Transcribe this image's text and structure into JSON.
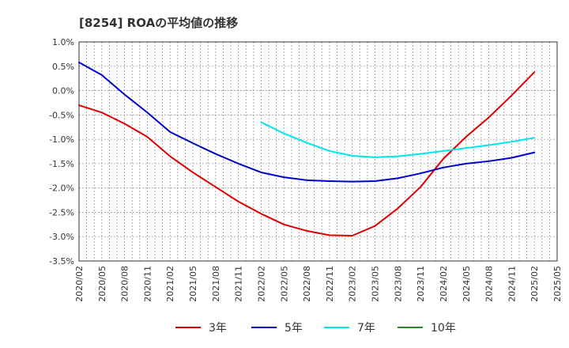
{
  "chart_data": {
    "type": "line",
    "title": "[8254]  ROAの平均値の推移",
    "xlabel": "",
    "ylabel": "",
    "x_ticks": [
      "2020/02",
      "2020/05",
      "2020/08",
      "2020/11",
      "2021/02",
      "2021/05",
      "2021/08",
      "2021/11",
      "2022/02",
      "2022/05",
      "2022/08",
      "2022/11",
      "2023/02",
      "2023/05",
      "2023/08",
      "2023/11",
      "2024/02",
      "2024/05",
      "2024/08",
      "2024/11",
      "2025/02",
      "2025/05"
    ],
    "y_ticks": [
      "1.0%",
      "0.5%",
      "0.0%",
      "-0.5%",
      "-1.0%",
      "-1.5%",
      "-2.0%",
      "-2.5%",
      "-3.0%",
      "-3.5%"
    ],
    "ylim": [
      -3.5,
      1.0
    ],
    "grid": true,
    "legend_position": "bottom",
    "series": [
      {
        "name": "3年",
        "color": "#dd0000",
        "points": [
          [
            0,
            -0.3
          ],
          [
            1,
            -0.45
          ],
          [
            2,
            -0.68
          ],
          [
            3,
            -0.95
          ],
          [
            4,
            -1.35
          ],
          [
            5,
            -1.68
          ],
          [
            6,
            -1.98
          ],
          [
            7,
            -2.28
          ],
          [
            8,
            -2.53
          ],
          [
            9,
            -2.75
          ],
          [
            10,
            -2.88
          ],
          [
            11,
            -2.97
          ],
          [
            12,
            -2.98
          ],
          [
            13,
            -2.78
          ],
          [
            14,
            -2.42
          ],
          [
            15,
            -1.98
          ],
          [
            16,
            -1.4
          ],
          [
            17,
            -0.95
          ],
          [
            18,
            -0.55
          ],
          [
            19,
            -0.1
          ],
          [
            20,
            0.38
          ]
        ]
      },
      {
        "name": "5年",
        "color": "#0000cc",
        "points": [
          [
            0,
            0.58
          ],
          [
            1,
            0.32
          ],
          [
            2,
            -0.08
          ],
          [
            3,
            -0.45
          ],
          [
            4,
            -0.85
          ],
          [
            5,
            -1.08
          ],
          [
            6,
            -1.3
          ],
          [
            7,
            -1.5
          ],
          [
            8,
            -1.68
          ],
          [
            9,
            -1.78
          ],
          [
            10,
            -1.84
          ],
          [
            11,
            -1.86
          ],
          [
            12,
            -1.87
          ],
          [
            13,
            -1.86
          ],
          [
            14,
            -1.8
          ],
          [
            15,
            -1.7
          ],
          [
            16,
            -1.58
          ],
          [
            17,
            -1.5
          ],
          [
            18,
            -1.45
          ],
          [
            19,
            -1.38
          ],
          [
            20,
            -1.27
          ]
        ]
      },
      {
        "name": "7年",
        "color": "#00e5ee",
        "points": [
          [
            8,
            -0.65
          ],
          [
            9,
            -0.88
          ],
          [
            10,
            -1.07
          ],
          [
            11,
            -1.24
          ],
          [
            12,
            -1.34
          ],
          [
            13,
            -1.37
          ],
          [
            14,
            -1.35
          ],
          [
            15,
            -1.3
          ],
          [
            16,
            -1.24
          ],
          [
            17,
            -1.18
          ],
          [
            18,
            -1.12
          ],
          [
            19,
            -1.05
          ],
          [
            20,
            -0.97
          ]
        ]
      },
      {
        "name": "10年",
        "color": "#228b22",
        "points": []
      }
    ]
  }
}
